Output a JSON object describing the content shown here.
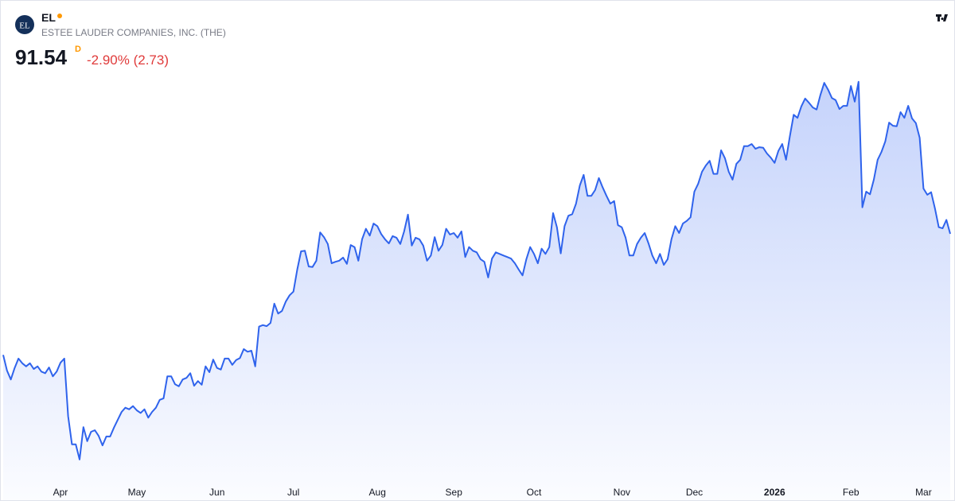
{
  "header": {
    "logo": "EL",
    "ticker": "EL",
    "company": "ESTEE LAUDER COMPANIES, INC. (THE)",
    "price": "91.54",
    "interval": "D",
    "change": "-2.90% (2.73)"
  },
  "chart_data": {
    "type": "area",
    "color": "#2f63ec",
    "values": [
      68.4,
      65.4,
      63.7,
      65.9,
      67.7,
      66.8,
      66.2,
      66.8,
      65.7,
      66.2,
      65.2,
      64.9,
      66.0,
      64.3,
      65.2,
      66.9,
      67.7,
      56.7,
      51.3,
      51.3,
      48.4,
      54.6,
      51.9,
      53.7,
      54.0,
      52.9,
      51.1,
      52.8,
      52.8,
      54.5,
      56.0,
      57.5,
      58.3,
      58.0,
      58.6,
      57.8,
      57.3,
      58.0,
      56.4,
      57.5,
      58.3,
      59.8,
      60.1,
      64.3,
      64.3,
      62.8,
      62.4,
      63.7,
      64.0,
      64.9,
      62.5,
      63.4,
      62.7,
      66.2,
      65.1,
      67.5,
      65.9,
      65.6,
      67.7,
      67.7,
      66.5,
      67.4,
      67.8,
      69.5,
      69.0,
      69.2,
      66.2,
      73.8,
      74.1,
      73.9,
      74.5,
      78.2,
      76.3,
      76.8,
      78.6,
      79.8,
      80.5,
      84.7,
      88.2,
      88.3,
      85.3,
      85.2,
      86.4,
      91.8,
      90.9,
      89.6,
      85.9,
      86.2,
      86.4,
      87.0,
      85.8,
      89.4,
      89.0,
      86.4,
      90.5,
      92.5,
      91.2,
      93.5,
      93.0,
      91.5,
      90.5,
      89.7,
      91.1,
      90.8,
      89.6,
      92.0,
      95.2,
      89.3,
      90.8,
      90.5,
      89.3,
      86.4,
      87.4,
      90.9,
      88.3,
      89.4,
      92.5,
      91.4,
      91.7,
      90.8,
      92.0,
      87.1,
      89.0,
      88.3,
      88.0,
      86.7,
      86.2,
      83.2,
      86.8,
      88.0,
      87.7,
      87.4,
      87.1,
      86.8,
      85.9,
      84.7,
      83.6,
      86.7,
      89.0,
      87.7,
      85.9,
      88.7,
      87.7,
      89.0,
      95.5,
      92.8,
      87.8,
      93.0,
      95.0,
      95.3,
      97.3,
      100.8,
      102.8,
      98.8,
      98.8,
      99.9,
      102.2,
      100.4,
      98.8,
      97.3,
      97.8,
      93.2,
      92.8,
      90.8,
      87.4,
      87.4,
      89.6,
      90.8,
      91.7,
      89.7,
      87.4,
      85.9,
      87.7,
      85.6,
      86.7,
      90.5,
      93.0,
      91.7,
      93.5,
      94.0,
      94.7,
      99.6,
      101.1,
      103.4,
      104.6,
      105.5,
      103.0,
      103.0,
      107.5,
      106.0,
      103.4,
      101.9,
      104.9,
      105.7,
      108.3,
      108.3,
      108.7,
      107.8,
      108.1,
      108.0,
      106.9,
      106.1,
      105.1,
      107.4,
      108.7,
      105.7,
      110.2,
      114.3,
      113.7,
      115.9,
      117.4,
      116.6,
      115.7,
      115.3,
      118.1,
      120.4,
      119.1,
      117.5,
      117.1,
      115.4,
      116.0,
      116.0,
      119.8,
      116.8,
      120.6,
      96.6,
      99.6,
      99.1,
      101.9,
      105.7,
      107.2,
      109.2,
      112.8,
      112.2,
      112.1,
      114.8,
      113.7,
      116.0,
      113.6,
      112.7,
      109.9,
      100.2,
      99.0,
      99.5,
      96.4,
      92.8,
      92.6,
      94.2,
      91.54
    ],
    "ylim": [
      44.88,
      122.4
    ],
    "xticks": [
      {
        "value": 15,
        "label": "Apr"
      },
      {
        "value": 35,
        "label": "May"
      },
      {
        "value": 56,
        "label": "Jun"
      },
      {
        "value": 76,
        "label": "Jul"
      },
      {
        "value": 98,
        "label": "Aug"
      },
      {
        "value": 118,
        "label": "Sep"
      },
      {
        "value": 139,
        "label": "Oct"
      },
      {
        "value": 162,
        "label": "Nov"
      },
      {
        "value": 181,
        "label": "Dec"
      },
      {
        "value": 202,
        "label": "2026"
      },
      {
        "value": 222,
        "label": "Feb"
      },
      {
        "value": 241,
        "label": "Mar"
      }
    ]
  }
}
